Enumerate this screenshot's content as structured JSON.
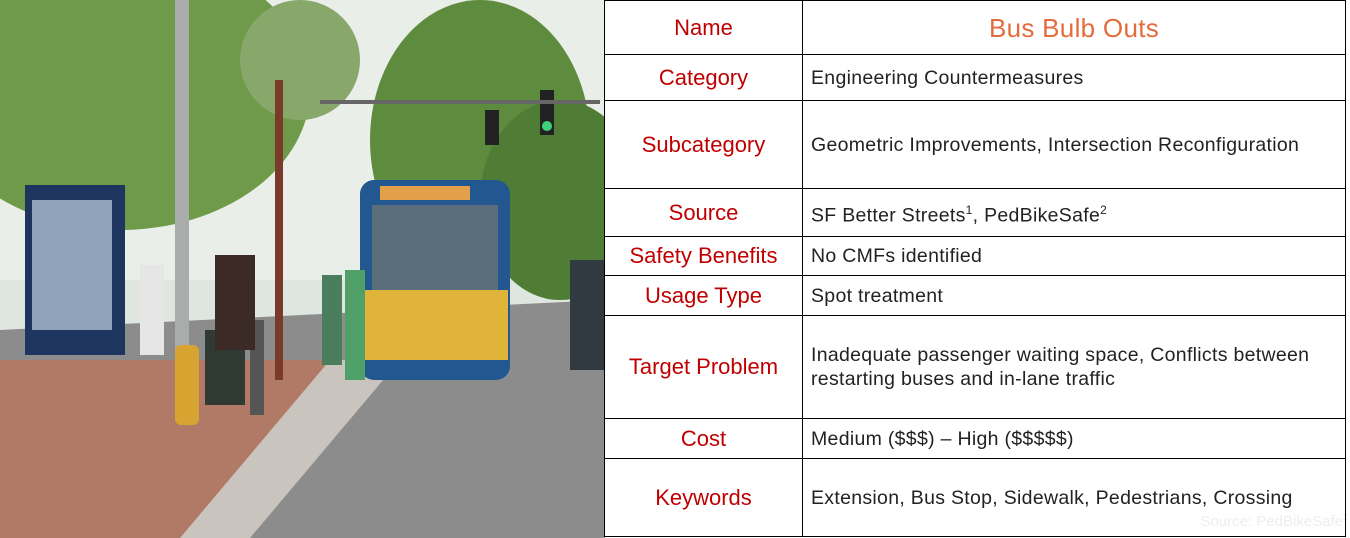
{
  "photo": {
    "caption": {
      "text": "Source: PedBikeSafe",
      "sup": "2"
    }
  },
  "table": {
    "rows": [
      {
        "label": "Name",
        "value": [
          "Bus Bulb Outs"
        ]
      },
      {
        "label": "Category",
        "value": [
          "Engineering Countermeasures"
        ]
      },
      {
        "label": "Subcategory",
        "value": [
          "Geometric Improvements, Intersection Reconfiguration"
        ]
      },
      {
        "label": "Source",
        "value": [
          "SF Better Streets",
          {
            "sup": "1"
          },
          ", PedBikeSafe",
          {
            "sup": "2"
          }
        ]
      },
      {
        "label": "Safety Benefits",
        "value": [
          "No CMFs identified"
        ]
      },
      {
        "label": "Usage Type",
        "value": [
          "Spot treatment"
        ]
      },
      {
        "label": "Target Problem",
        "value": [
          "Inadequate passenger waiting space, Conflicts between restarting buses and in-lane traffic"
        ]
      },
      {
        "label": "Cost",
        "value": [
          "Medium ($$$) – High ($$$$$)"
        ]
      },
      {
        "label": "Keywords",
        "value": [
          "Extension, Bus Stop, Sidewalk, Pedestrians, Crossing"
        ]
      }
    ]
  }
}
